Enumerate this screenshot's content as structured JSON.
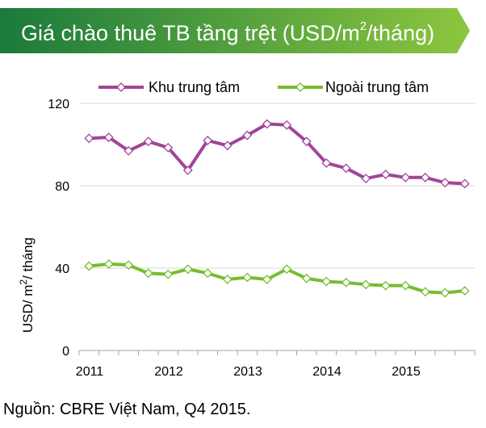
{
  "header": {
    "title_pre": "Giá chào thuê TB tầng trệt (USD/m",
    "title_sup": "2",
    "title_post": "/tháng)"
  },
  "footer": {
    "source": "Nguồn: CBRE Việt Nam, Q4 2015."
  },
  "colors": {
    "banner_start": "#1a7a3c",
    "banner_end": "#8dc63f",
    "series_central": "#a0449a",
    "series_outer": "#76bd2c"
  },
  "chart_data": {
    "type": "line",
    "title": "Giá chào thuê TB tầng trệt (USD/m2/tháng)",
    "ylabel_pre": "USD/ m",
    "ylabel_sup": "2",
    "ylabel_post": "/ tháng",
    "ylim": [
      0,
      120
    ],
    "yticks": [
      0,
      40,
      80,
      120
    ],
    "x_tick_labels": [
      "2011",
      "2012",
      "2013",
      "2014",
      "2015"
    ],
    "x": [
      "2011-Q1",
      "2011-Q2",
      "2011-Q3",
      "2011-Q4",
      "2012-Q1",
      "2012-Q2",
      "2012-Q3",
      "2012-Q4",
      "2013-Q1",
      "2013-Q2",
      "2013-Q3",
      "2013-Q4",
      "2014-Q1",
      "2014-Q2",
      "2014-Q3",
      "2014-Q4",
      "2015-Q1",
      "2015-Q2",
      "2015-Q3",
      "2015-Q4"
    ],
    "legend_position": "top",
    "grid": "horizontal",
    "series": [
      {
        "name": "Khu trung tâm",
        "values": [
          103,
          103.5,
          97,
          101.5,
          98.5,
          87.5,
          102,
          99.5,
          104.5,
          110,
          109.5,
          101.5,
          91,
          88.5,
          83.5,
          85.5,
          84,
          84,
          81.5,
          81
        ]
      },
      {
        "name": "Ngoài trung tâm",
        "values": [
          41,
          42,
          41.5,
          37.5,
          37,
          39.5,
          37.5,
          34.5,
          35.5,
          34.5,
          39.5,
          35,
          33.5,
          33,
          32,
          31.5,
          31.5,
          28.5,
          28,
          29
        ]
      }
    ]
  }
}
